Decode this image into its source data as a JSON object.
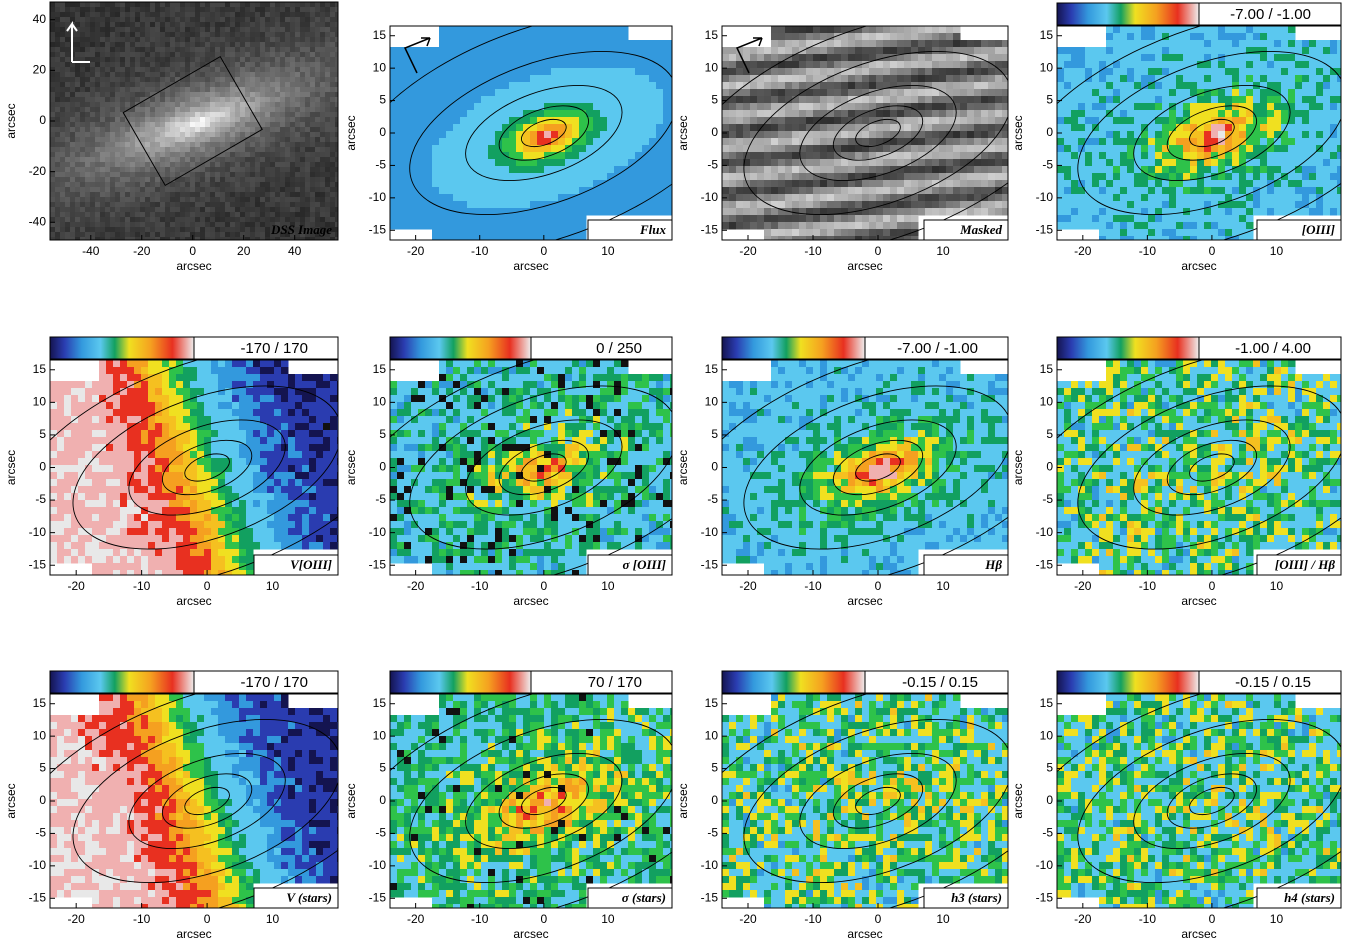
{
  "chart_data": [
    {
      "type": "image",
      "label": "DSS Image",
      "colormap": "gray",
      "xlabel": "arcsec",
      "ylabel": "arcsec",
      "xlim": [
        -56,
        57
      ],
      "ylim": [
        -47,
        47
      ],
      "xticks": [
        -40,
        -20,
        0,
        20,
        40
      ],
      "yticks": [
        -40,
        -20,
        0,
        20,
        40
      ]
    },
    {
      "type": "map",
      "label": "Flux",
      "field": "flux",
      "colormap": "rainbow",
      "xlabel": "arcsec",
      "ylabel": "arcsec",
      "xlim": [
        -24,
        20
      ],
      "ylim": [
        -16.5,
        16.5
      ],
      "xticks": [
        -20,
        -10,
        0,
        10
      ],
      "yticks": [
        -15,
        -10,
        -5,
        0,
        5,
        10,
        15
      ]
    },
    {
      "type": "map",
      "label": "Masked",
      "field": "masked",
      "colormap": "gray",
      "xlabel": "arcsec",
      "ylabel": "arcsec",
      "xlim": [
        -24,
        20
      ],
      "ylim": [
        -16.5,
        16.5
      ],
      "xticks": [
        -20,
        -10,
        0,
        10
      ],
      "yticks": [
        -15,
        -10,
        -5,
        0,
        5,
        10,
        15
      ]
    },
    {
      "type": "map",
      "label": "[OIII]",
      "field": "peak",
      "colorbar": "-7.00 / -1.00",
      "colormap": "rainbow",
      "xlabel": "arcsec",
      "ylabel": "arcsec",
      "xlim": [
        -24,
        20
      ],
      "ylim": [
        -16.5,
        16.5
      ],
      "xticks": [
        -20,
        -10,
        0,
        10
      ],
      "yticks": [
        -15,
        -10,
        -5,
        0,
        5,
        10,
        15
      ]
    },
    {
      "type": "map",
      "label": "V[OIII]",
      "field": "velocity",
      "colorbar": "-170 / 170",
      "colormap": "rainbow",
      "xlabel": "arcsec",
      "ylabel": "arcsec",
      "xlim": [
        -24,
        20
      ],
      "ylim": [
        -16.5,
        16.5
      ],
      "xticks": [
        -20,
        -10,
        0,
        10
      ],
      "yticks": [
        -15,
        -10,
        -5,
        0,
        5,
        10,
        15
      ]
    },
    {
      "type": "map",
      "label": "σ [OIII]",
      "field": "noisy",
      "colorbar": "0 / 250",
      "colormap": "rainbow",
      "xlabel": "arcsec",
      "ylabel": "arcsec",
      "xlim": [
        -24,
        20
      ],
      "ylim": [
        -16.5,
        16.5
      ],
      "xticks": [
        -20,
        -10,
        0,
        10
      ],
      "yticks": [
        -15,
        -10,
        -5,
        0,
        5,
        10,
        15
      ]
    },
    {
      "type": "map",
      "label": "Hβ",
      "field": "peak",
      "colorbar": "-7.00 / -1.00",
      "colormap": "rainbow",
      "xlabel": "arcsec",
      "ylabel": "arcsec",
      "xlim": [
        -24,
        20
      ],
      "ylim": [
        -16.5,
        16.5
      ],
      "xticks": [
        -20,
        -10,
        0,
        10
      ],
      "yticks": [
        -15,
        -10,
        -5,
        0,
        5,
        10,
        15
      ]
    },
    {
      "type": "map",
      "label": "[OIII] / Hβ",
      "field": "ratio",
      "colorbar": "-1.00 / 4.00",
      "colormap": "rainbow",
      "xlabel": "arcsec",
      "ylabel": "arcsec",
      "xlim": [
        -24,
        20
      ],
      "ylim": [
        -16.5,
        16.5
      ],
      "xticks": [
        -20,
        -10,
        0,
        10
      ],
      "yticks": [
        -15,
        -10,
        -5,
        0,
        5,
        10,
        15
      ]
    },
    {
      "type": "map",
      "label": "V (stars)",
      "field": "velocity",
      "colorbar": "-170 / 170",
      "colormap": "rainbow",
      "xlabel": "arcsec",
      "ylabel": "arcsec",
      "xlim": [
        -24,
        20
      ],
      "ylim": [
        -16.5,
        16.5
      ],
      "xticks": [
        -20,
        -10,
        0,
        10
      ],
      "yticks": [
        -15,
        -10,
        -5,
        0,
        5,
        10,
        15
      ]
    },
    {
      "type": "map",
      "label": "σ (stars)",
      "field": "sigma",
      "colorbar": "70 / 170",
      "colormap": "rainbow",
      "xlabel": "arcsec",
      "ylabel": "arcsec",
      "xlim": [
        -24,
        20
      ],
      "ylim": [
        -16.5,
        16.5
      ],
      "xticks": [
        -20,
        -10,
        0,
        10
      ],
      "yticks": [
        -15,
        -10,
        -5,
        0,
        5,
        10,
        15
      ]
    },
    {
      "type": "map",
      "label": "h3 (stars)",
      "field": "ratio",
      "colorbar": "-0.15 / 0.15",
      "colormap": "rainbow",
      "xlabel": "arcsec",
      "ylabel": "arcsec",
      "xlim": [
        -24,
        20
      ],
      "ylim": [
        -16.5,
        16.5
      ],
      "xticks": [
        -20,
        -10,
        0,
        10
      ],
      "yticks": [
        -15,
        -10,
        -5,
        0,
        5,
        10,
        15
      ]
    },
    {
      "type": "map",
      "label": "h4 (stars)",
      "field": "ratio",
      "colorbar": "-0.15 / 0.15",
      "colormap": "rainbow",
      "xlabel": "arcsec",
      "ylabel": "arcsec",
      "xlim": [
        -24,
        20
      ],
      "ylim": [
        -16.5,
        16.5
      ],
      "xticks": [
        -20,
        -10,
        0,
        10
      ],
      "yticks": [
        -15,
        -10,
        -5,
        0,
        5,
        10,
        15
      ]
    }
  ]
}
